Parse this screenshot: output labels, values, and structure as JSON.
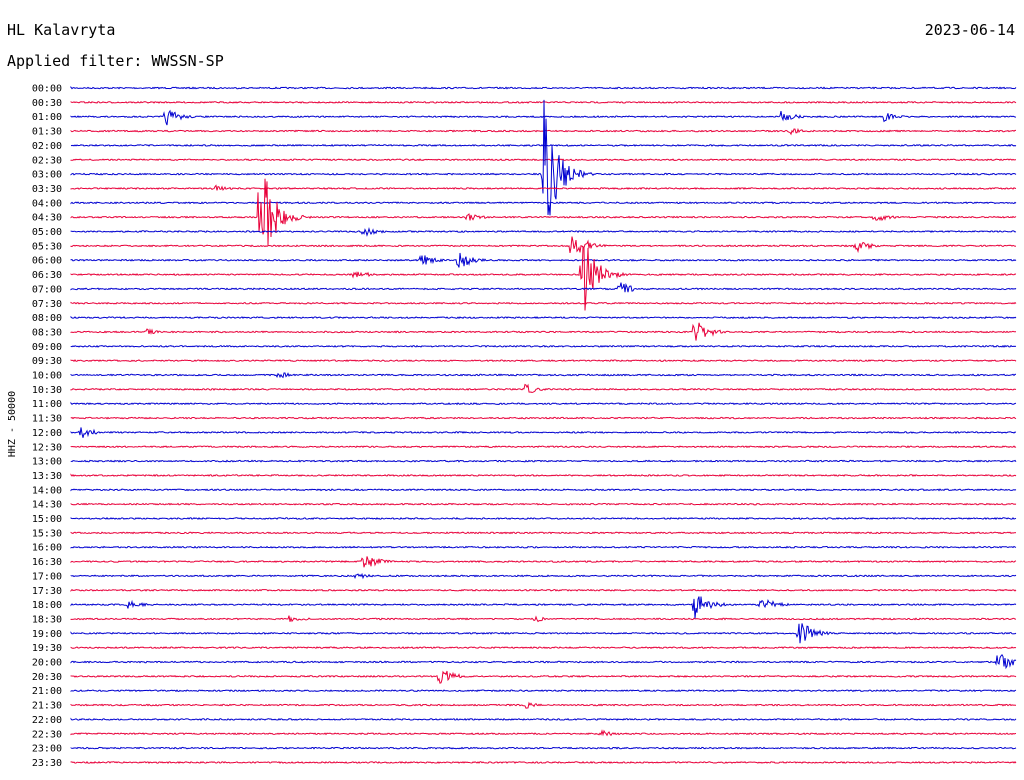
{
  "header": {
    "station": "HL Kalavryta",
    "date": "2023-06-14",
    "filter": "Applied filter: WWSSN-SP"
  },
  "colors": {
    "blue": "#0000d0",
    "red": "#e8003a"
  },
  "chart_data": {
    "type": "line",
    "ylabel": "HHZ - 50000",
    "row_labels": [
      "00:00",
      "00:30",
      "01:00",
      "01:30",
      "02:00",
      "02:30",
      "03:00",
      "03:30",
      "04:00",
      "04:30",
      "05:00",
      "05:30",
      "06:00",
      "06:30",
      "07:00",
      "07:30",
      "08:00",
      "08:30",
      "09:00",
      "09:30",
      "10:00",
      "10:30",
      "11:00",
      "11:30",
      "12:00",
      "12:30",
      "13:00",
      "13:30",
      "14:00",
      "14:30",
      "15:00",
      "15:30",
      "16:00",
      "16:30",
      "17:00",
      "17:30",
      "18:00",
      "18:30",
      "19:00",
      "19:30",
      "20:00",
      "20:30",
      "21:00",
      "21:30",
      "22:00",
      "22:30",
      "23:00",
      "23:30"
    ],
    "row_colors": [
      "blue",
      "red"
    ],
    "grid": false,
    "events": [
      {
        "row": 2,
        "pos": 0.1,
        "amp": 10
      },
      {
        "row": 2,
        "pos": 0.75,
        "amp": 7
      },
      {
        "row": 2,
        "pos": 0.86,
        "amp": 5
      },
      {
        "row": 3,
        "pos": 0.76,
        "amp": 4
      },
      {
        "row": 6,
        "pos": 0.5,
        "amp": 80
      },
      {
        "row": 7,
        "pos": 0.15,
        "amp": 4
      },
      {
        "row": 9,
        "pos": 0.2,
        "amp": 65
      },
      {
        "row": 9,
        "pos": 0.42,
        "amp": 5
      },
      {
        "row": 9,
        "pos": 0.85,
        "amp": 6
      },
      {
        "row": 10,
        "pos": 0.31,
        "amp": 5
      },
      {
        "row": 11,
        "pos": 0.53,
        "amp": 18
      },
      {
        "row": 11,
        "pos": 0.83,
        "amp": 7
      },
      {
        "row": 12,
        "pos": 0.37,
        "amp": 7
      },
      {
        "row": 12,
        "pos": 0.41,
        "amp": 10
      },
      {
        "row": 13,
        "pos": 0.3,
        "amp": 5
      },
      {
        "row": 13,
        "pos": 0.54,
        "amp": 50
      },
      {
        "row": 14,
        "pos": 0.58,
        "amp": 8
      },
      {
        "row": 17,
        "pos": 0.66,
        "amp": 14
      },
      {
        "row": 17,
        "pos": 0.08,
        "amp": 3
      },
      {
        "row": 20,
        "pos": 0.22,
        "amp": 4
      },
      {
        "row": 21,
        "pos": 0.48,
        "amp": 6
      },
      {
        "row": 24,
        "pos": 0.01,
        "amp": 7
      },
      {
        "row": 33,
        "pos": 0.31,
        "amp": 10
      },
      {
        "row": 34,
        "pos": 0.3,
        "amp": 4
      },
      {
        "row": 36,
        "pos": 0.66,
        "amp": 16
      },
      {
        "row": 36,
        "pos": 0.73,
        "amp": 10
      },
      {
        "row": 36,
        "pos": 0.06,
        "amp": 5
      },
      {
        "row": 37,
        "pos": 0.23,
        "amp": 5
      },
      {
        "row": 37,
        "pos": 0.49,
        "amp": 4
      },
      {
        "row": 38,
        "pos": 0.77,
        "amp": 16
      },
      {
        "row": 40,
        "pos": 0.98,
        "amp": 13
      },
      {
        "row": 41,
        "pos": 0.39,
        "amp": 10
      },
      {
        "row": 43,
        "pos": 0.48,
        "amp": 4
      },
      {
        "row": 45,
        "pos": 0.56,
        "amp": 4
      }
    ]
  }
}
